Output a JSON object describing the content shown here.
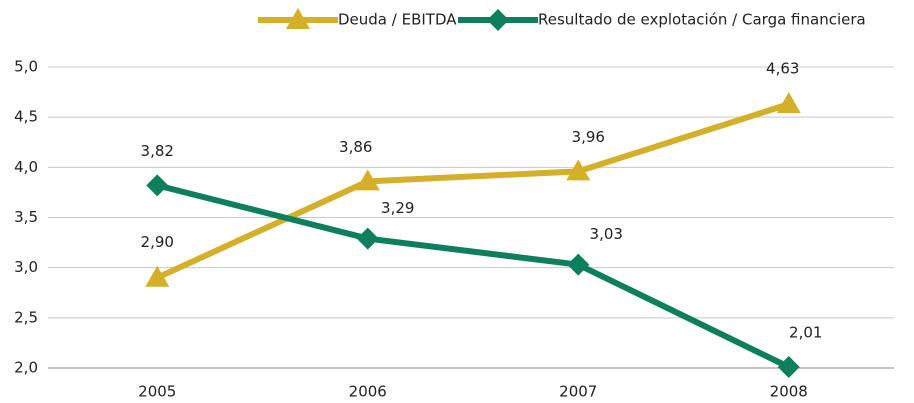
{
  "chart_data": {
    "type": "line",
    "categories": [
      "2005",
      "2006",
      "2007",
      "2008"
    ],
    "series": [
      {
        "name": "Deuda / EBITDA",
        "color": "#d4b02a",
        "marker": "triangle",
        "values": [
          2.9,
          3.86,
          3.96,
          4.63
        ],
        "value_labels": [
          "2,90",
          "3,86",
          "3,96",
          "4,63"
        ]
      },
      {
        "name": "Resultado de explotación / Carga financiera",
        "color": "#0e7f5e",
        "marker": "diamond",
        "values": [
          3.82,
          3.29,
          3.03,
          2.01
        ],
        "value_labels": [
          "3,82",
          "3,29",
          "3,03",
          "2,01"
        ]
      }
    ],
    "ylim": [
      2,
      5
    ],
    "yticks": [
      {
        "value": 2,
        "label": "2,0"
      },
      {
        "value": 2.5,
        "label": "2,5"
      },
      {
        "value": 3,
        "label": "3,0"
      },
      {
        "value": 3.5,
        "label": "3,5"
      },
      {
        "value": 4,
        "label": "4,0"
      },
      {
        "value": 4.5,
        "label": "4,5"
      },
      {
        "value": 5,
        "label": "5,0"
      }
    ],
    "grid": true,
    "legend": "top"
  }
}
